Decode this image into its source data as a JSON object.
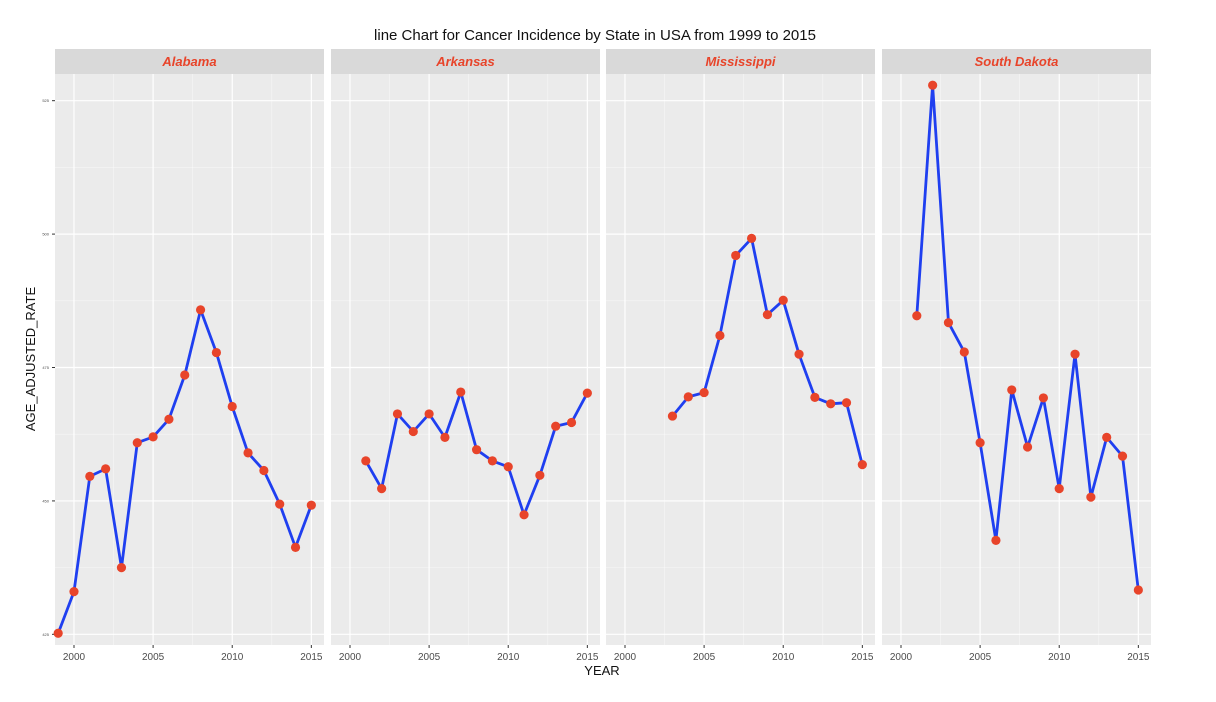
{
  "chart_data": {
    "type": "line",
    "title": "line Chart for Cancer Incidence by State in USA from 1999 to 2015",
    "xlabel": "YEAR",
    "ylabel": "AGE_ADJUSTED_RATE",
    "xlim": [
      1998.8,
      2015.8
    ],
    "ylim": [
      423,
      530
    ],
    "x_ticks": [
      2000,
      2005,
      2010,
      2015
    ],
    "y_ticks": [
      425,
      450,
      475,
      500,
      525
    ],
    "grid": true,
    "legend": "none",
    "colors": {
      "line": "#1f3ff0",
      "point": "#e8442a",
      "strip_text": "#e8442a",
      "strip_bg": "#d9d9d9",
      "panel_bg": "#ebebeb",
      "grid": "#ffffff"
    },
    "panels": [
      {
        "name": "Alabama",
        "x": [
          1999,
          2000,
          2001,
          2002,
          2003,
          2004,
          2005,
          2006,
          2007,
          2008,
          2009,
          2010,
          2011,
          2012,
          2013,
          2014,
          2015
        ],
        "y": [
          425.2,
          433.0,
          454.6,
          456.0,
          437.5,
          460.9,
          462.0,
          465.3,
          473.6,
          485.8,
          477.8,
          467.7,
          459.0,
          455.7,
          449.4,
          441.3,
          449.2
        ]
      },
      {
        "name": "Arkansas",
        "x": [
          2001,
          2002,
          2003,
          2004,
          2005,
          2006,
          2007,
          2008,
          2009,
          2010,
          2011,
          2012,
          2013,
          2014,
          2015
        ],
        "y": [
          457.5,
          452.3,
          466.3,
          463.0,
          466.3,
          461.9,
          470.4,
          459.6,
          457.5,
          456.4,
          447.4,
          454.8,
          464.0,
          464.7,
          470.2
        ]
      },
      {
        "name": "Mississippi",
        "x": [
          2003,
          2004,
          2005,
          2006,
          2007,
          2008,
          2009,
          2010,
          2011,
          2012,
          2013,
          2014,
          2015
        ],
        "y": [
          465.9,
          469.5,
          470.3,
          481.0,
          496.0,
          499.2,
          484.9,
          487.6,
          477.5,
          469.4,
          468.2,
          468.4,
          456.8
        ]
      },
      {
        "name": "South Dakota",
        "x": [
          2001,
          2002,
          2003,
          2004,
          2005,
          2006,
          2007,
          2008,
          2009,
          2010,
          2011,
          2012,
          2013,
          2014,
          2015
        ],
        "y": [
          484.7,
          527.9,
          483.4,
          477.9,
          460.9,
          442.6,
          470.8,
          460.1,
          469.3,
          452.3,
          477.5,
          450.7,
          461.9,
          458.4,
          433.3
        ]
      }
    ]
  }
}
